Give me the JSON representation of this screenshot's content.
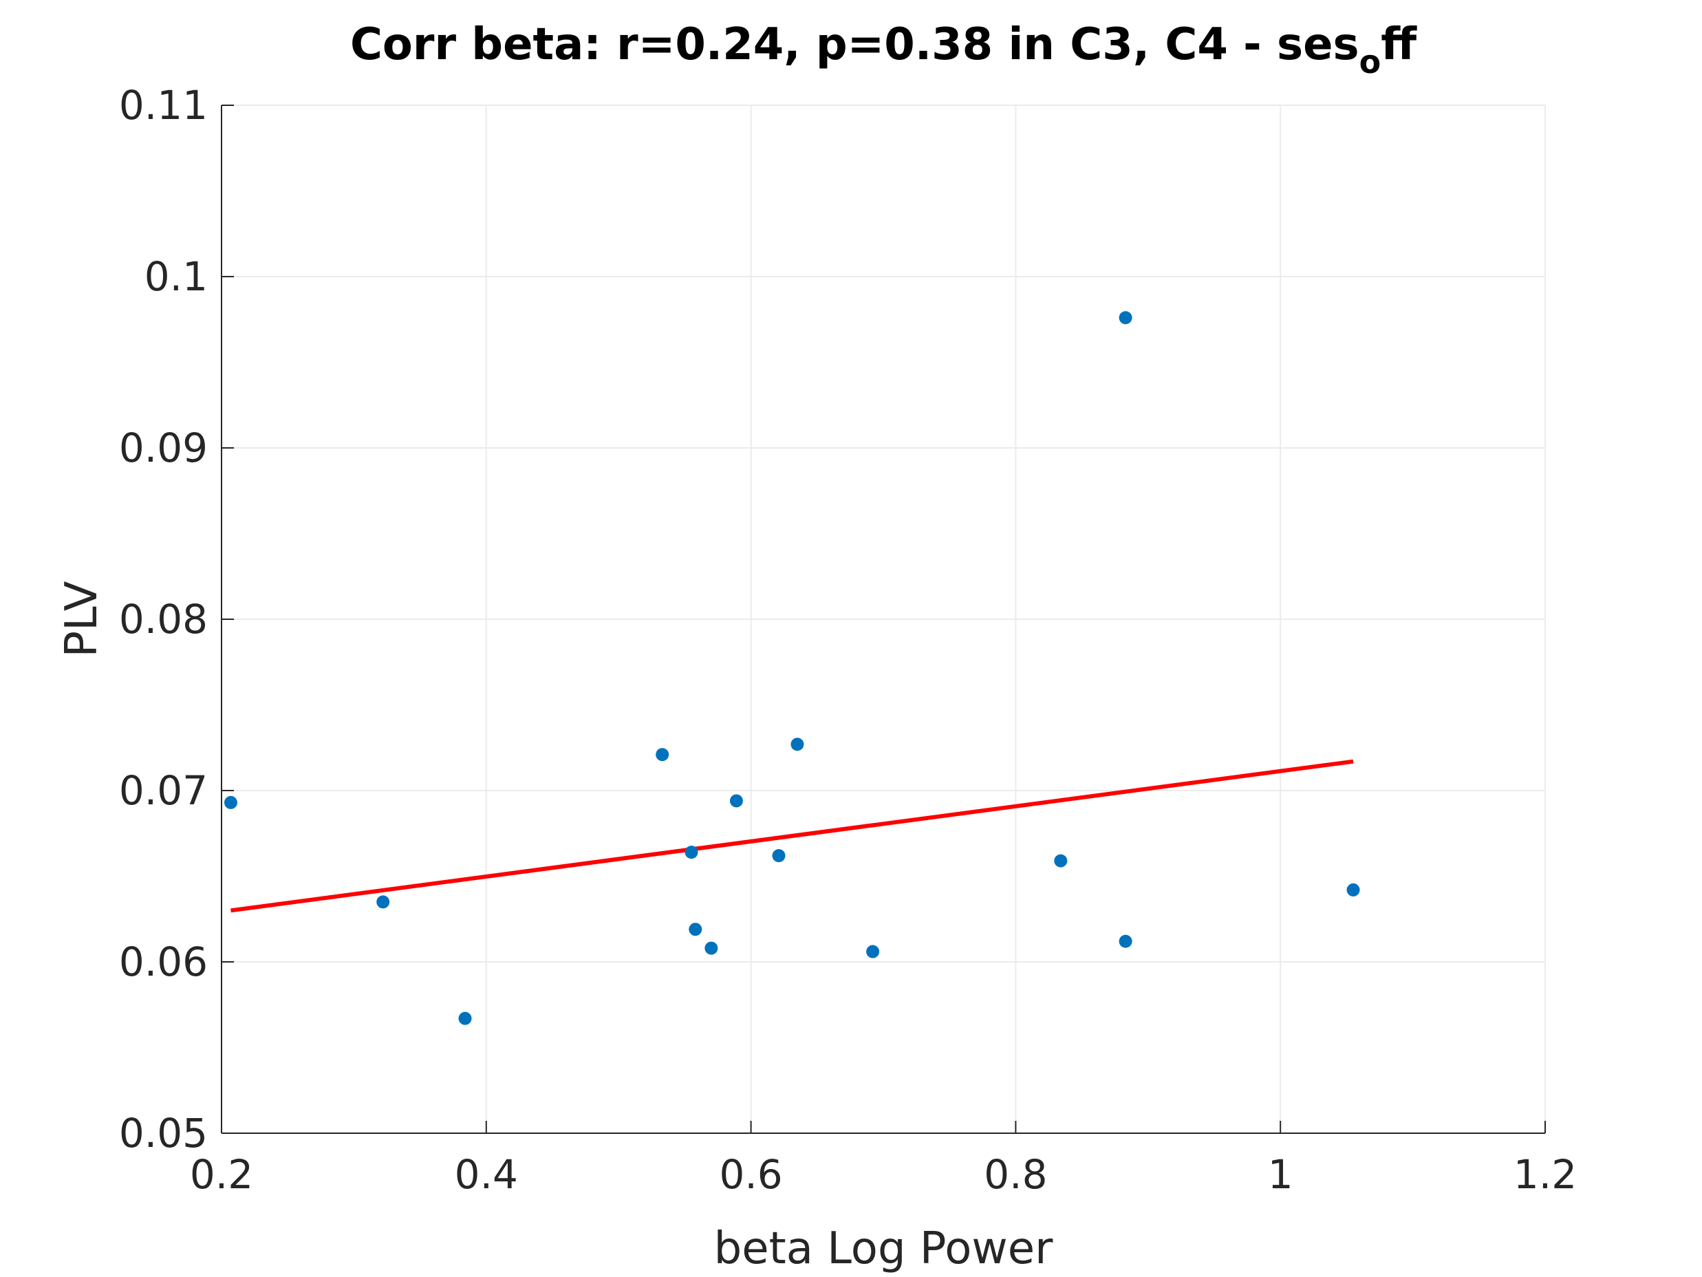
{
  "chart_data": {
    "type": "scatter",
    "title": {
      "main": "Corr beta: r=0.24, p=0.38 in C3, C4 - ses",
      "subscript": "o",
      "suffix": "ff"
    },
    "xlabel": "beta Log Power",
    "ylabel": "PLV",
    "xlim": [
      0.2,
      1.2
    ],
    "ylim": [
      0.05,
      0.11
    ],
    "xticks": [
      0.2,
      0.4,
      0.6,
      0.8,
      1.0,
      1.2
    ],
    "xtick_labels": [
      "0.2",
      "0.4",
      "0.6",
      "0.8",
      "1",
      "1.2"
    ],
    "yticks": [
      0.05,
      0.06,
      0.07,
      0.08,
      0.09,
      0.1,
      0.11
    ],
    "ytick_labels": [
      "0.05",
      "0.06",
      "0.07",
      "0.08",
      "0.09",
      "0.1",
      "0.11"
    ],
    "grid": true,
    "series": [
      {
        "type": "scatter",
        "color": "#0072bd",
        "points": [
          {
            "x": 0.207,
            "y": 0.0693
          },
          {
            "x": 0.322,
            "y": 0.0635
          },
          {
            "x": 0.384,
            "y": 0.0567
          },
          {
            "x": 0.533,
            "y": 0.0721
          },
          {
            "x": 0.555,
            "y": 0.0664
          },
          {
            "x": 0.558,
            "y": 0.0619
          },
          {
            "x": 0.57,
            "y": 0.0608
          },
          {
            "x": 0.589,
            "y": 0.0694
          },
          {
            "x": 0.621,
            "y": 0.0662
          },
          {
            "x": 0.635,
            "y": 0.0727
          },
          {
            "x": 0.692,
            "y": 0.0606
          },
          {
            "x": 0.834,
            "y": 0.0659
          },
          {
            "x": 0.883,
            "y": 0.0976
          },
          {
            "x": 0.883,
            "y": 0.0612
          },
          {
            "x": 1.055,
            "y": 0.0642
          }
        ]
      },
      {
        "type": "line",
        "color": "#ff0000",
        "points": [
          {
            "x": 0.207,
            "y": 0.063
          },
          {
            "x": 1.055,
            "y": 0.0717
          }
        ]
      }
    ]
  }
}
